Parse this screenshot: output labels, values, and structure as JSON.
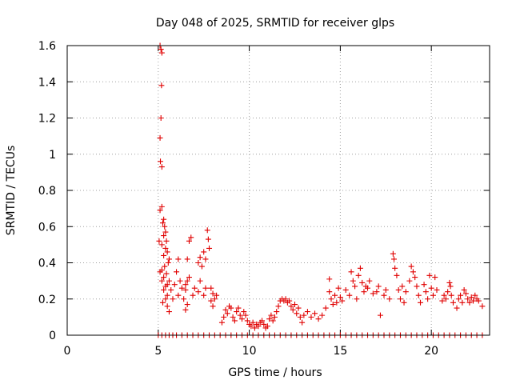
{
  "chart_data": {
    "type": "scatter",
    "title": "Day 048 of 2025, SRMTID for receiver glps",
    "xlabel": "GPS time / hours",
    "ylabel": "SRMTID / TECUs",
    "xlim": [
      0,
      23.2
    ],
    "ylim": [
      0,
      1.6
    ],
    "xticks": [
      0,
      5,
      10,
      15,
      20
    ],
    "yticks": [
      0,
      0.2,
      0.4,
      0.6,
      0.8,
      1,
      1.2,
      1.4,
      1.6
    ],
    "grid": true,
    "series": [
      {
        "name": "SRMTID",
        "marker": "plus",
        "color": "#e00000",
        "points": [
          [
            5.1,
            1.6
          ],
          [
            5.15,
            1.58
          ],
          [
            5.2,
            1.56
          ],
          [
            5.18,
            1.38
          ],
          [
            5.15,
            1.2
          ],
          [
            5.1,
            1.09
          ],
          [
            5.12,
            0.96
          ],
          [
            5.2,
            0.93
          ],
          [
            5.1,
            0.69
          ],
          [
            5.2,
            0.71
          ],
          [
            5.25,
            0.62
          ],
          [
            5.3,
            0.64
          ],
          [
            5.35,
            0.6
          ],
          [
            5.4,
            0.57
          ],
          [
            5.3,
            0.55
          ],
          [
            5.45,
            0.52
          ],
          [
            5.05,
            0.52
          ],
          [
            5.2,
            0.5
          ],
          [
            5.4,
            0.48
          ],
          [
            5.5,
            0.46
          ],
          [
            5.3,
            0.44
          ],
          [
            5.6,
            0.42
          ],
          [
            5.55,
            0.4
          ],
          [
            5.35,
            0.38
          ],
          [
            5.2,
            0.36
          ],
          [
            5.1,
            0.35
          ],
          [
            5.45,
            0.34
          ],
          [
            5.3,
            0.32
          ],
          [
            5.6,
            0.3
          ],
          [
            5.5,
            0.28
          ],
          [
            5.2,
            0.3
          ],
          [
            5.4,
            0.27
          ],
          [
            5.3,
            0.25
          ],
          [
            5.5,
            0.22
          ],
          [
            5.7,
            0.25
          ],
          [
            5.4,
            0.2
          ],
          [
            5.25,
            0.18
          ],
          [
            5.5,
            0.16
          ],
          [
            5.6,
            0.13
          ],
          [
            5.8,
            0.2
          ],
          [
            5.9,
            0.28
          ],
          [
            6.0,
            0.35
          ],
          [
            6.1,
            0.42
          ],
          [
            6.2,
            0.3
          ],
          [
            6.1,
            0.22
          ],
          [
            6.3,
            0.26
          ],
          [
            6.5,
            0.28
          ],
          [
            6.6,
            0.3
          ],
          [
            6.8,
            0.54
          ],
          [
            6.7,
            0.52
          ],
          [
            6.6,
            0.42
          ],
          [
            6.7,
            0.32
          ],
          [
            6.5,
            0.25
          ],
          [
            6.4,
            0.2
          ],
          [
            6.6,
            0.17
          ],
          [
            6.5,
            0.14
          ],
          [
            6.9,
            0.22
          ],
          [
            7.0,
            0.26
          ],
          [
            7.2,
            0.4
          ],
          [
            7.3,
            0.43
          ],
          [
            7.5,
            0.46
          ],
          [
            7.4,
            0.38
          ],
          [
            7.6,
            0.42
          ],
          [
            7.3,
            0.3
          ],
          [
            7.2,
            0.24
          ],
          [
            7.5,
            0.22
          ],
          [
            7.6,
            0.26
          ],
          [
            7.7,
            0.58
          ],
          [
            7.75,
            0.53
          ],
          [
            7.8,
            0.48
          ],
          [
            7.9,
            0.26
          ],
          [
            8.0,
            0.23
          ],
          [
            7.9,
            0.19
          ],
          [
            8.0,
            0.16
          ],
          [
            8.1,
            0.2
          ],
          [
            8.2,
            0.22
          ],
          [
            8.5,
            0.07
          ],
          [
            8.6,
            0.1
          ],
          [
            8.7,
            0.14
          ],
          [
            8.8,
            0.12
          ],
          [
            8.9,
            0.16
          ],
          [
            9.0,
            0.15
          ],
          [
            9.1,
            0.1
          ],
          [
            9.2,
            0.08
          ],
          [
            9.3,
            0.13
          ],
          [
            9.4,
            0.15
          ],
          [
            9.5,
            0.11
          ],
          [
            9.6,
            0.09
          ],
          [
            9.7,
            0.13
          ],
          [
            9.8,
            0.11
          ],
          [
            9.9,
            0.08
          ],
          [
            10.0,
            0.06
          ],
          [
            10.1,
            0.05
          ],
          [
            10.2,
            0.07
          ],
          [
            10.3,
            0.04
          ],
          [
            10.4,
            0.06
          ],
          [
            10.5,
            0.05
          ],
          [
            10.6,
            0.07
          ],
          [
            10.7,
            0.08
          ],
          [
            10.8,
            0.06
          ],
          [
            10.9,
            0.04
          ],
          [
            11.0,
            0.05
          ],
          [
            11.1,
            0.09
          ],
          [
            11.2,
            0.11
          ],
          [
            11.3,
            0.08
          ],
          [
            11.4,
            0.1
          ],
          [
            11.5,
            0.13
          ],
          [
            11.6,
            0.16
          ],
          [
            11.7,
            0.19
          ],
          [
            11.8,
            0.2
          ],
          [
            11.9,
            0.19
          ],
          [
            12.0,
            0.2
          ],
          [
            12.1,
            0.18
          ],
          [
            12.2,
            0.19
          ],
          [
            12.3,
            0.16
          ],
          [
            12.4,
            0.14
          ],
          [
            12.5,
            0.17
          ],
          [
            12.6,
            0.12
          ],
          [
            12.7,
            0.15
          ],
          [
            12.8,
            0.1
          ],
          [
            12.9,
            0.07
          ],
          [
            13.0,
            0.11
          ],
          [
            13.2,
            0.13
          ],
          [
            13.4,
            0.1
          ],
          [
            13.6,
            0.12
          ],
          [
            13.8,
            0.09
          ],
          [
            14.0,
            0.11
          ],
          [
            14.2,
            0.15
          ],
          [
            14.4,
            0.24
          ],
          [
            14.5,
            0.2
          ],
          [
            14.6,
            0.17
          ],
          [
            14.4,
            0.31
          ],
          [
            14.7,
            0.22
          ],
          [
            14.8,
            0.18
          ],
          [
            14.9,
            0.26
          ],
          [
            15.0,
            0.21
          ],
          [
            15.1,
            0.19
          ],
          [
            15.3,
            0.25
          ],
          [
            15.5,
            0.22
          ],
          [
            15.6,
            0.35
          ],
          [
            15.7,
            0.3
          ],
          [
            15.8,
            0.27
          ],
          [
            15.9,
            0.2
          ],
          [
            16.0,
            0.33
          ],
          [
            16.1,
            0.37
          ],
          [
            16.2,
            0.29
          ],
          [
            16.3,
            0.24
          ],
          [
            16.4,
            0.27
          ],
          [
            16.5,
            0.26
          ],
          [
            16.6,
            0.3
          ],
          [
            16.8,
            0.23
          ],
          [
            17.0,
            0.24
          ],
          [
            17.1,
            0.27
          ],
          [
            17.2,
            0.11
          ],
          [
            17.4,
            0.22
          ],
          [
            17.5,
            0.25
          ],
          [
            17.7,
            0.2
          ],
          [
            17.9,
            0.45
          ],
          [
            17.95,
            0.42
          ],
          [
            18.0,
            0.37
          ],
          [
            18.1,
            0.33
          ],
          [
            18.2,
            0.25
          ],
          [
            18.3,
            0.2
          ],
          [
            18.4,
            0.27
          ],
          [
            18.5,
            0.18
          ],
          [
            18.6,
            0.24
          ],
          [
            18.8,
            0.3
          ],
          [
            18.9,
            0.38
          ],
          [
            19.0,
            0.35
          ],
          [
            19.1,
            0.32
          ],
          [
            19.2,
            0.27
          ],
          [
            19.3,
            0.22
          ],
          [
            19.4,
            0.18
          ],
          [
            19.6,
            0.28
          ],
          [
            19.7,
            0.24
          ],
          [
            19.8,
            0.2
          ],
          [
            19.9,
            0.33
          ],
          [
            20.0,
            0.26
          ],
          [
            20.1,
            0.22
          ],
          [
            20.2,
            0.32
          ],
          [
            20.3,
            0.25
          ],
          [
            20.6,
            0.19
          ],
          [
            20.7,
            0.22
          ],
          [
            20.8,
            0.2
          ],
          [
            20.9,
            0.24
          ],
          [
            21.0,
            0.29
          ],
          [
            21.05,
            0.27
          ],
          [
            21.1,
            0.22
          ],
          [
            21.2,
            0.18
          ],
          [
            21.4,
            0.15
          ],
          [
            21.5,
            0.2
          ],
          [
            21.6,
            0.22
          ],
          [
            21.7,
            0.18
          ],
          [
            21.8,
            0.25
          ],
          [
            21.9,
            0.23
          ],
          [
            22.0,
            0.2
          ],
          [
            22.1,
            0.18
          ],
          [
            22.2,
            0.21
          ],
          [
            22.3,
            0.19
          ],
          [
            22.4,
            0.22
          ],
          [
            22.5,
            0.2
          ],
          [
            22.6,
            0.19
          ],
          [
            22.8,
            0.16
          ],
          [
            5.0,
            0
          ],
          [
            5.2,
            0
          ],
          [
            5.4,
            0
          ],
          [
            5.6,
            0
          ],
          [
            5.8,
            0
          ],
          [
            6.0,
            0
          ],
          [
            6.3,
            0
          ],
          [
            6.6,
            0
          ],
          [
            6.9,
            0
          ],
          [
            7.2,
            0
          ],
          [
            7.5,
            0
          ],
          [
            7.8,
            0
          ],
          [
            8.1,
            0
          ],
          [
            8.4,
            0
          ],
          [
            8.7,
            0
          ],
          [
            9.0,
            0
          ],
          [
            9.3,
            0
          ],
          [
            9.6,
            0
          ],
          [
            9.9,
            0
          ],
          [
            10.2,
            0
          ],
          [
            10.5,
            0
          ],
          [
            10.8,
            0
          ],
          [
            11.1,
            0
          ],
          [
            11.4,
            0
          ],
          [
            11.7,
            0
          ],
          [
            12.0,
            0
          ],
          [
            12.3,
            0
          ],
          [
            12.6,
            0
          ],
          [
            12.9,
            0
          ],
          [
            13.2,
            0
          ],
          [
            13.5,
            0
          ],
          [
            13.8,
            0
          ],
          [
            14.1,
            0
          ],
          [
            14.4,
            0
          ],
          [
            14.7,
            0
          ],
          [
            15.0,
            0
          ],
          [
            15.3,
            0
          ],
          [
            15.6,
            0
          ],
          [
            15.9,
            0
          ],
          [
            16.2,
            0
          ],
          [
            16.5,
            0
          ],
          [
            16.8,
            0
          ],
          [
            17.1,
            0
          ],
          [
            17.4,
            0
          ],
          [
            17.7,
            0
          ],
          [
            18.0,
            0
          ],
          [
            18.3,
            0
          ],
          [
            18.6,
            0
          ],
          [
            18.9,
            0
          ],
          [
            19.2,
            0
          ],
          [
            19.5,
            0
          ],
          [
            19.8,
            0
          ],
          [
            20.1,
            0
          ],
          [
            20.4,
            0
          ],
          [
            20.7,
            0
          ],
          [
            21.0,
            0
          ],
          [
            21.3,
            0
          ],
          [
            21.6,
            0
          ],
          [
            21.9,
            0
          ],
          [
            22.2,
            0
          ],
          [
            22.5,
            0
          ],
          [
            22.8,
            0
          ]
        ]
      }
    ]
  }
}
